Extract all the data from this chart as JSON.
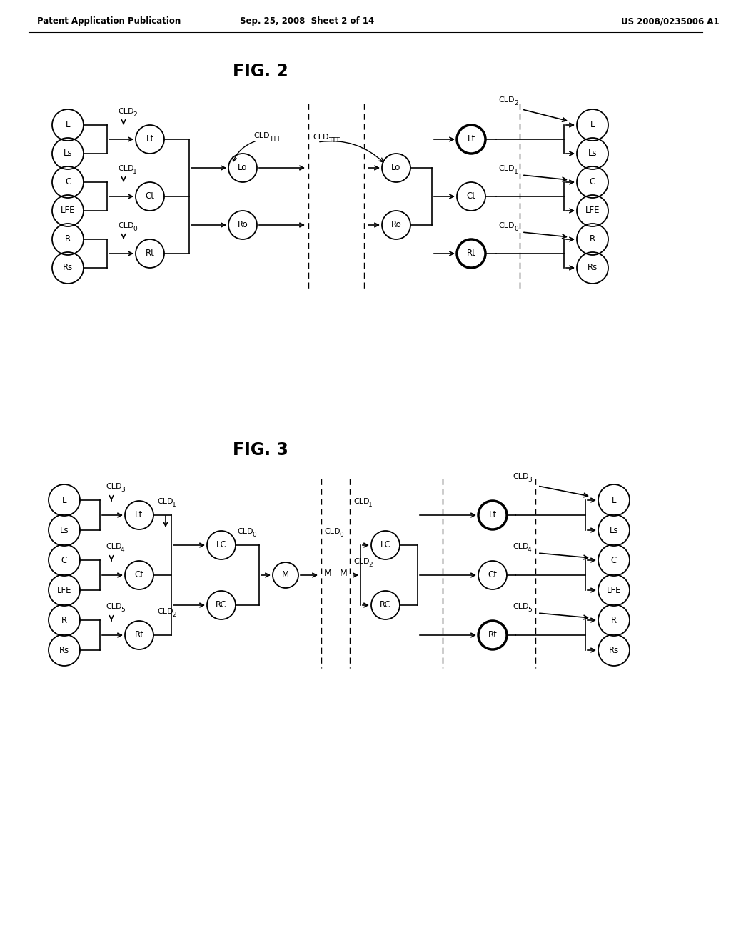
{
  "header_left": "Patent Application Publication",
  "header_mid": "Sep. 25, 2008  Sheet 2 of 14",
  "header_right": "US 2008/0235006 A1",
  "fig2_title": "FIG. 2",
  "fig3_title": "FIG. 3",
  "background": "#ffffff"
}
